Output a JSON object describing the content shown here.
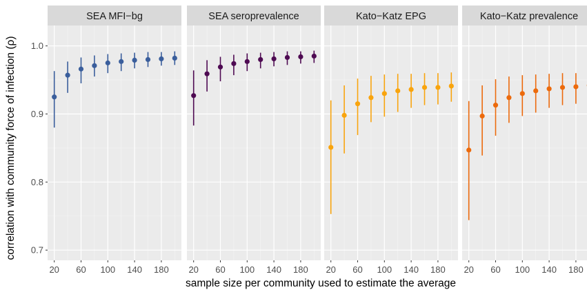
{
  "chart_data": {
    "type": "scatter",
    "layout": "faceted point-range",
    "xlabel": "sample size per community used to estimate the average",
    "ylabel": "correlation with community force of infection (ρ)",
    "ylim": [
      0.685,
      1.03
    ],
    "xlim": [
      10,
      210
    ],
    "y_ticks": [
      0.7,
      0.8,
      0.9,
      1.0
    ],
    "y_tick_labels": [
      "0.7",
      "0.8",
      "0.9",
      "1.0"
    ],
    "x_ticks": [
      20,
      60,
      100,
      140,
      180
    ],
    "x_tick_labels": [
      "20",
      "60",
      "100",
      "140",
      "180"
    ],
    "grid": true,
    "x": [
      20,
      40,
      60,
      80,
      100,
      120,
      140,
      160,
      180,
      200
    ],
    "panels": [
      {
        "title": "SEA MFI−bg",
        "color": "#3A5E9C",
        "y": [
          0.925,
          0.957,
          0.966,
          0.971,
          0.975,
          0.977,
          0.979,
          0.98,
          0.981,
          0.982
        ],
        "lower": [
          0.88,
          0.931,
          0.945,
          0.955,
          0.96,
          0.963,
          0.967,
          0.969,
          0.971,
          0.972
        ],
        "upper": [
          0.963,
          0.977,
          0.983,
          0.986,
          0.988,
          0.989,
          0.99,
          0.991,
          0.991,
          0.992
        ]
      },
      {
        "title": "SEA seroprevalence",
        "color": "#4E0A52",
        "y": [
          0.927,
          0.959,
          0.969,
          0.974,
          0.977,
          0.98,
          0.981,
          0.983,
          0.984,
          0.985
        ],
        "lower": [
          0.883,
          0.933,
          0.948,
          0.957,
          0.963,
          0.967,
          0.97,
          0.972,
          0.974,
          0.975
        ],
        "upper": [
          0.964,
          0.979,
          0.984,
          0.987,
          0.989,
          0.99,
          0.991,
          0.992,
          0.992,
          0.993
        ]
      },
      {
        "title": "Kato−Katz EPG",
        "color": "#F9A40D",
        "y": [
          0.851,
          0.898,
          0.915,
          0.924,
          0.93,
          0.934,
          0.936,
          0.939,
          0.939,
          0.941
        ],
        "lower": [
          0.753,
          0.842,
          0.869,
          0.888,
          0.896,
          0.903,
          0.909,
          0.913,
          0.914,
          0.918
        ],
        "upper": [
          0.92,
          0.942,
          0.952,
          0.956,
          0.958,
          0.959,
          0.959,
          0.96,
          0.96,
          0.961
        ]
      },
      {
        "title": "Kato−Katz prevalence",
        "color": "#EC6A0C",
        "y": [
          0.847,
          0.897,
          0.913,
          0.924,
          0.93,
          0.934,
          0.937,
          0.939,
          0.94,
          0.942
        ],
        "lower": [
          0.744,
          0.839,
          0.868,
          0.887,
          0.897,
          0.902,
          0.909,
          0.913,
          0.915,
          0.918
        ],
        "upper": [
          0.919,
          0.942,
          0.951,
          0.955,
          0.957,
          0.958,
          0.959,
          0.96,
          0.96,
          0.961
        ]
      }
    ]
  }
}
